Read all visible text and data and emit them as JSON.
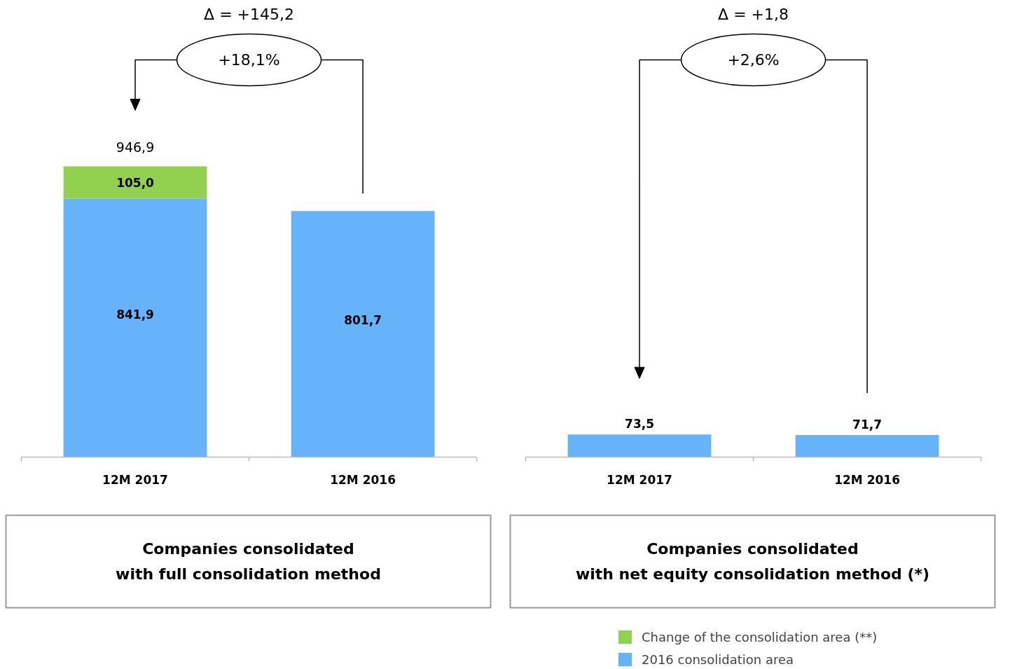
{
  "chart_data": [
    {
      "type": "bar",
      "stacked": true,
      "title": "Companies consolidated\nwith full consolidation method",
      "categories": [
        "12M 2017",
        "12M 2016"
      ],
      "series": [
        {
          "name": "2016 consolidation area",
          "color": "#66b3fa",
          "values": [
            841.9,
            801.7
          ],
          "value_labels": [
            "841,9",
            "801,7"
          ]
        },
        {
          "name": "Change of the consolidation area (**)",
          "color": "#92d050",
          "values": [
            105.0,
            null
          ],
          "value_labels": [
            "105,0",
            null
          ]
        }
      ],
      "totals": [
        "946,9",
        null
      ],
      "annotations": [
        "Δ = +145,2",
        "+18,1%"
      ],
      "grid": false,
      "legend": "bottom"
    },
    {
      "type": "bar",
      "stacked": true,
      "title": "Companies consolidated\nwith net equity consolidation method (*)",
      "categories": [
        "12M 2017",
        "12M 2016"
      ],
      "series": [
        {
          "color": "#66b3fa",
          "values": [
            73.5,
            71.7
          ],
          "value_labels": [
            "73,5",
            "71,7"
          ]
        },
        {
          "color": "#92d050",
          "values": [
            null,
            null
          ]
        }
      ],
      "annotations": [
        "Δ = +1,8",
        "+2,6%"
      ],
      "grid": false
    }
  ]
}
